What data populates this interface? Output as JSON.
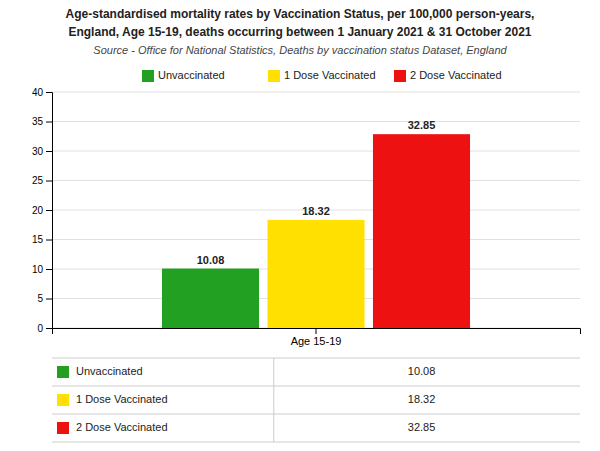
{
  "chart_data": {
    "type": "bar",
    "title": "Age-standardised mortality rates by Vaccination Status, per 100,000 person-years,",
    "subtitle": "England, Age 15-19, deaths occurring between 1 January 2021 & 31 October 2021",
    "annotations": [
      "Source - Office for National Statistics, Deaths by vaccination status Dataset, England"
    ],
    "categories": [
      "Age 15-19"
    ],
    "series": [
      {
        "name": "Unvaccinated",
        "color": "#22a022",
        "values": [
          10.08
        ]
      },
      {
        "name": "1 Dose Vaccinated",
        "color": "#FFE000",
        "values": [
          18.32
        ]
      },
      {
        "name": "2 Dose Vaccinated",
        "color": "#EE1111",
        "values": [
          32.85
        ]
      }
    ],
    "ylim": [
      0,
      40
    ],
    "yticks": [
      0,
      5,
      10,
      15,
      20,
      25,
      30,
      35,
      40
    ],
    "grid": true,
    "legend": "top",
    "data_labels": true
  }
}
